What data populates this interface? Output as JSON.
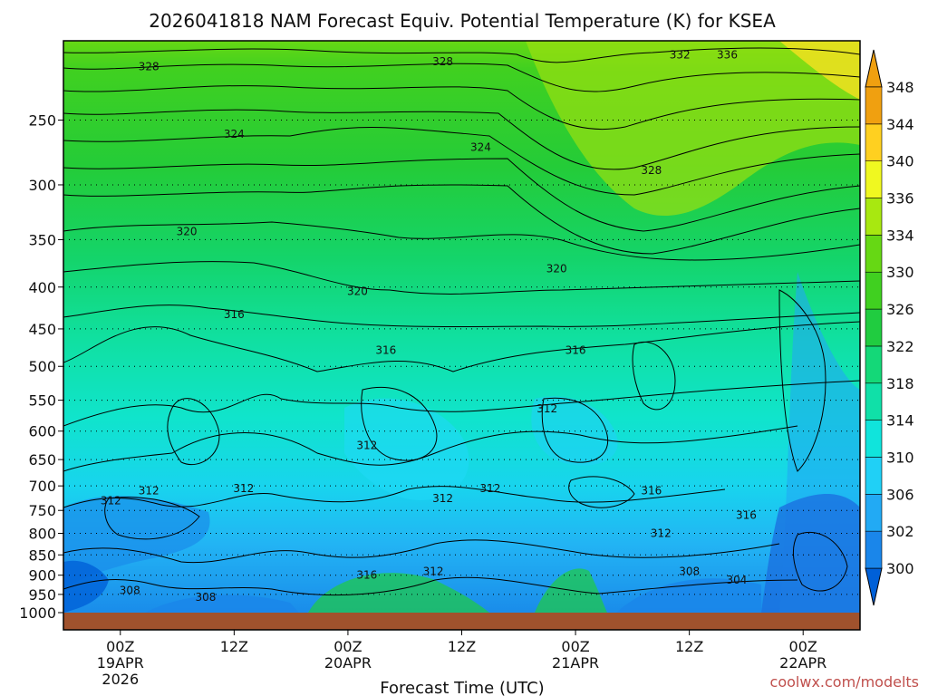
{
  "chart_data": {
    "type": "heatmap",
    "title": "2026041818 NAM Forecast Equiv. Potential Temperature (K) for KSEA",
    "xlabel": "Forecast Time (UTC)",
    "ylabel": "",
    "credit": "coolwx.com/modelts",
    "x_ticks": [
      {
        "hour": 6,
        "lines": [
          "00Z",
          "19APR",
          "2026"
        ]
      },
      {
        "hour": 18,
        "lines": [
          "12Z"
        ]
      },
      {
        "hour": 30,
        "lines": [
          "00Z",
          "20APR"
        ]
      },
      {
        "hour": 42,
        "lines": [
          "12Z"
        ]
      },
      {
        "hour": 54,
        "lines": [
          "00Z",
          "21APR"
        ]
      },
      {
        "hour": 66,
        "lines": [
          "12Z"
        ]
      },
      {
        "hour": 78,
        "lines": [
          "00Z",
          "22APR"
        ]
      }
    ],
    "xlim": [
      0,
      84
    ],
    "y_ticks": [
      "250",
      "300",
      "350",
      "400",
      "450",
      "500",
      "550",
      "600",
      "650",
      "700",
      "750",
      "800",
      "850",
      "900",
      "950",
      "1000"
    ],
    "ylim": [
      1000,
      200
    ],
    "yscale": "log",
    "colorbar": {
      "labels": [
        "300",
        "302",
        "306",
        "310",
        "314",
        "318",
        "322",
        "326",
        "330",
        "334",
        "336",
        "340",
        "344",
        "348"
      ],
      "colors": [
        "#0060d8",
        "#1a86ea",
        "#22aaf4",
        "#20d0f6",
        "#10e4dc",
        "#10e0a8",
        "#14d878",
        "#20cc40",
        "#40d020",
        "#66d814",
        "#a8e810",
        "#f0f820",
        "#ffd020",
        "#f0a010"
      ]
    },
    "contour_labels": [
      {
        "value": "328",
        "hour": 9,
        "p": 215
      },
      {
        "value": "328",
        "hour": 40,
        "p": 212
      },
      {
        "value": "332",
        "hour": 65,
        "p": 208
      },
      {
        "value": "336",
        "hour": 70,
        "p": 208
      },
      {
        "value": "324",
        "hour": 18,
        "p": 260
      },
      {
        "value": "324",
        "hour": 44,
        "p": 270
      },
      {
        "value": "328",
        "hour": 62,
        "p": 288
      },
      {
        "value": "320",
        "hour": 13,
        "p": 342
      },
      {
        "value": "320",
        "hour": 31,
        "p": 405
      },
      {
        "value": "320",
        "hour": 52,
        "p": 380
      },
      {
        "value": "316",
        "hour": 18,
        "p": 432
      },
      {
        "value": "316",
        "hour": 34,
        "p": 478
      },
      {
        "value": "316",
        "hour": 54,
        "p": 478
      },
      {
        "value": "312",
        "hour": 51,
        "p": 563
      },
      {
        "value": "312",
        "hour": 32,
        "p": 625
      },
      {
        "value": "312",
        "hour": 5,
        "p": 730
      },
      {
        "value": "312",
        "hour": 9,
        "p": 710
      },
      {
        "value": "312",
        "hour": 19,
        "p": 705
      },
      {
        "value": "312",
        "hour": 40,
        "p": 725
      },
      {
        "value": "312",
        "hour": 45,
        "p": 705
      },
      {
        "value": "316",
        "hour": 62,
        "p": 710
      },
      {
        "value": "312",
        "hour": 63,
        "p": 800
      },
      {
        "value": "316",
        "hour": 72,
        "p": 760
      },
      {
        "value": "316",
        "hour": 32,
        "p": 900
      },
      {
        "value": "312",
        "hour": 39,
        "p": 890
      },
      {
        "value": "308",
        "hour": 7,
        "p": 940
      },
      {
        "value": "308",
        "hour": 15,
        "p": 958
      },
      {
        "value": "308",
        "hour": 66,
        "p": 890
      },
      {
        "value": "304",
        "hour": 71,
        "p": 912
      }
    ]
  }
}
